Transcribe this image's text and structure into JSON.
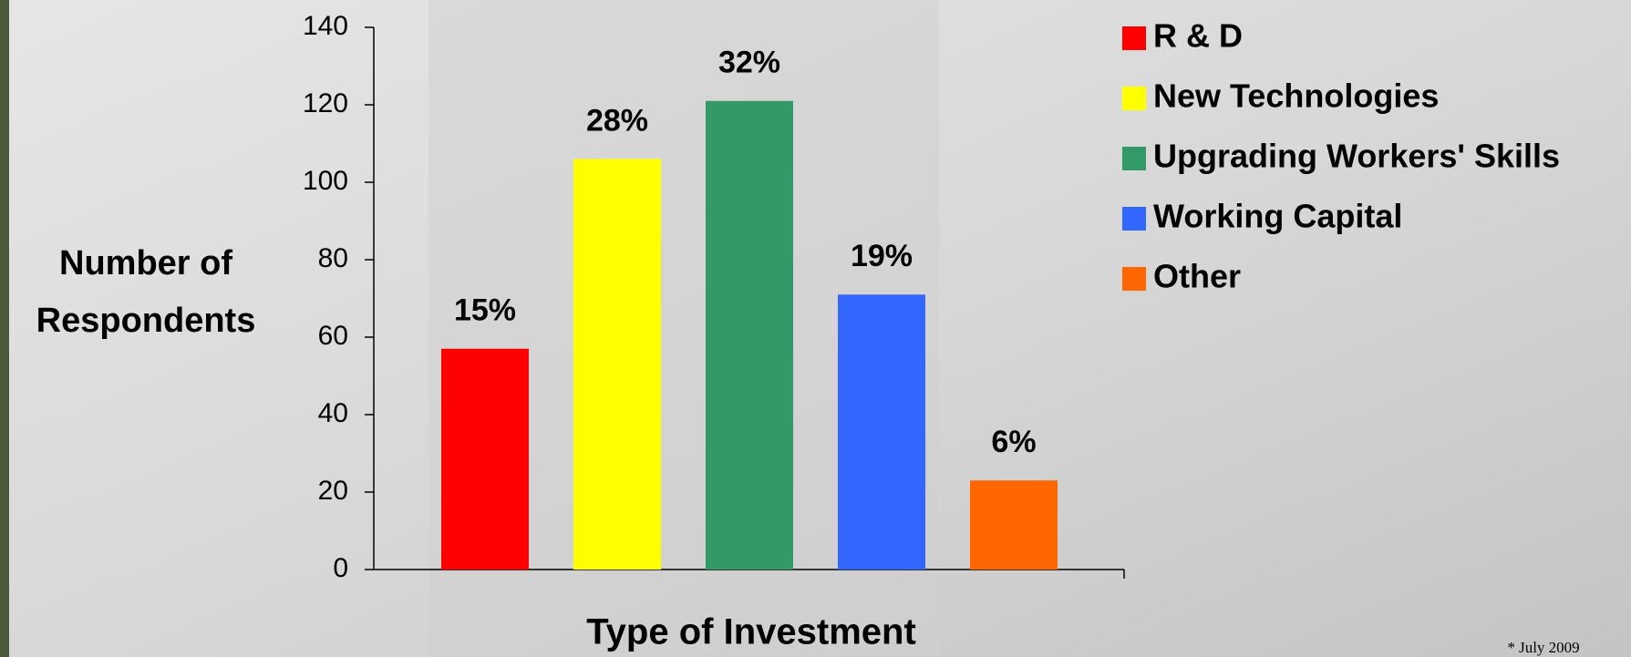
{
  "chart_data": {
    "type": "bar",
    "categories": [
      "R & D",
      "New Technologies",
      "Upgrading Workers' Skills",
      "Working Capital",
      "Other"
    ],
    "values": [
      57,
      106,
      121,
      71,
      23
    ],
    "bar_labels": [
      "15%",
      "28%",
      "32%",
      "19%",
      "6%"
    ],
    "colors": [
      "#ff0000",
      "#ffff00",
      "#339966",
      "#3366ff",
      "#ff6600"
    ],
    "ylim": [
      0,
      140
    ],
    "yticks": [
      0,
      20,
      40,
      60,
      80,
      100,
      120,
      140
    ],
    "y_label": [
      "Number of",
      "Respondents"
    ],
    "x_label": "Type of Investment",
    "legend": "right",
    "note": "* July 2009"
  }
}
